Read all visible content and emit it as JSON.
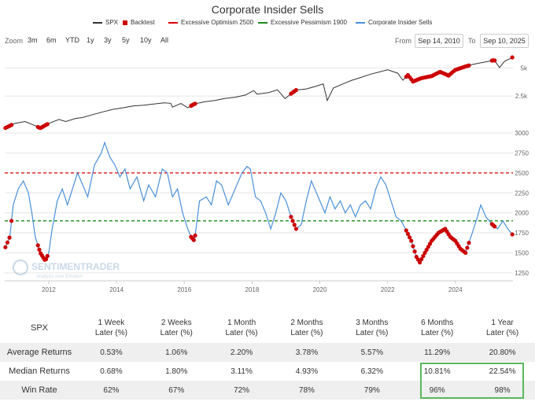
{
  "chart_data": {
    "type": "line",
    "title": "Corporate Insider Sells",
    "legend": [
      {
        "name": "SPX",
        "color": "#333333",
        "kind": "line"
      },
      {
        "name": "Backtest",
        "color": "#cc0000",
        "kind": "square"
      },
      {
        "name": "Excessive Optimism 2500",
        "color": "#e00000",
        "kind": "dash"
      },
      {
        "name": "Excessive Pessimism 1900",
        "color": "#1a8c1a",
        "kind": "dash"
      },
      {
        "name": "Corporate Insider Sells",
        "color": "#4a90d9",
        "kind": "line"
      }
    ],
    "x_ticks": [
      "2012",
      "2014",
      "2016",
      "2018",
      "2020",
      "2022",
      "2024"
    ],
    "x_range": [
      2010.7,
      2025.7
    ],
    "spx_axis": {
      "ticks": [
        "2.5k",
        "5k"
      ],
      "tick_values": [
        2500,
        5000
      ],
      "log": true,
      "range": [
        1150,
        6900
      ]
    },
    "insider_axis": {
      "ticks": [
        "1250",
        "1500",
        "1750",
        "2000",
        "2250",
        "2500",
        "2750",
        "3000"
      ],
      "tick_values": [
        1250,
        1500,
        1750,
        2000,
        2250,
        2500,
        2750,
        3000
      ],
      "range": [
        1150,
        3050
      ]
    },
    "thresholds": {
      "optimism": 2500,
      "pessimism": 1900
    },
    "spx_series": [
      [
        2010.7,
        1125
      ],
      [
        2011.0,
        1270
      ],
      [
        2011.3,
        1330
      ],
      [
        2011.6,
        1200
      ],
      [
        2011.75,
        1130
      ],
      [
        2012.0,
        1270
      ],
      [
        2012.3,
        1400
      ],
      [
        2012.5,
        1330
      ],
      [
        2012.8,
        1440
      ],
      [
        2013.0,
        1470
      ],
      [
        2013.3,
        1580
      ],
      [
        2013.6,
        1690
      ],
      [
        2013.9,
        1800
      ],
      [
        2014.2,
        1870
      ],
      [
        2014.5,
        1960
      ],
      [
        2014.8,
        1990
      ],
      [
        2015.1,
        2050
      ],
      [
        2015.4,
        2110
      ],
      [
        2015.6,
        2090
      ],
      [
        2015.65,
        1900
      ],
      [
        2015.9,
        2080
      ],
      [
        2016.1,
        1870
      ],
      [
        2016.3,
        2060
      ],
      [
        2016.6,
        2170
      ],
      [
        2016.9,
        2240
      ],
      [
        2017.2,
        2360
      ],
      [
        2017.5,
        2430
      ],
      [
        2017.8,
        2560
      ],
      [
        2018.05,
        2860
      ],
      [
        2018.15,
        2620
      ],
      [
        2018.5,
        2730
      ],
      [
        2018.75,
        2920
      ],
      [
        2018.97,
        2350
      ],
      [
        2019.3,
        2900
      ],
      [
        2019.6,
        2980
      ],
      [
        2019.9,
        3200
      ],
      [
        2020.1,
        3380
      ],
      [
        2020.22,
        2240
      ],
      [
        2020.4,
        3050
      ],
      [
        2020.7,
        3400
      ],
      [
        2020.95,
        3700
      ],
      [
        2021.2,
        3950
      ],
      [
        2021.5,
        4300
      ],
      [
        2021.8,
        4580
      ],
      [
        2022.0,
        4790
      ],
      [
        2022.3,
        4400
      ],
      [
        2022.45,
        3700
      ],
      [
        2022.6,
        4200
      ],
      [
        2022.75,
        3580
      ],
      [
        2023.0,
        3900
      ],
      [
        2023.3,
        4100
      ],
      [
        2023.55,
        4550
      ],
      [
        2023.8,
        4150
      ],
      [
        2024.0,
        4780
      ],
      [
        2024.3,
        5200
      ],
      [
        2024.5,
        5460
      ],
      [
        2024.7,
        5650
      ],
      [
        2024.95,
        5880
      ],
      [
        2025.15,
        6100
      ],
      [
        2025.3,
        5060
      ],
      [
        2025.45,
        5900
      ],
      [
        2025.7,
        6560
      ]
    ],
    "insider_series": [
      [
        2010.7,
        1550
      ],
      [
        2010.85,
        1700
      ],
      [
        2010.95,
        2100
      ],
      [
        2011.1,
        2300
      ],
      [
        2011.25,
        2400
      ],
      [
        2011.4,
        2250
      ],
      [
        2011.5,
        2000
      ],
      [
        2011.6,
        1700
      ],
      [
        2011.75,
        1500
      ],
      [
        2011.9,
        1400
      ],
      [
        2012.0,
        1500
      ],
      [
        2012.1,
        1800
      ],
      [
        2012.25,
        2150
      ],
      [
        2012.4,
        2300
      ],
      [
        2012.55,
        2100
      ],
      [
        2012.7,
        2300
      ],
      [
        2012.85,
        2500
      ],
      [
        2013.0,
        2350
      ],
      [
        2013.15,
        2200
      ],
      [
        2013.35,
        2600
      ],
      [
        2013.55,
        2750
      ],
      [
        2013.65,
        2880
      ],
      [
        2013.8,
        2700
      ],
      [
        2013.95,
        2600
      ],
      [
        2014.1,
        2450
      ],
      [
        2014.25,
        2550
      ],
      [
        2014.4,
        2300
      ],
      [
        2014.6,
        2450
      ],
      [
        2014.8,
        2150
      ],
      [
        2014.95,
        2350
      ],
      [
        2015.15,
        2200
      ],
      [
        2015.35,
        2550
      ],
      [
        2015.5,
        2500
      ],
      [
        2015.65,
        2200
      ],
      [
        2015.8,
        2300
      ],
      [
        2015.95,
        2000
      ],
      [
        2016.1,
        1800
      ],
      [
        2016.2,
        1700
      ],
      [
        2016.3,
        1650
      ],
      [
        2016.45,
        2150
      ],
      [
        2016.65,
        2200
      ],
      [
        2016.8,
        2100
      ],
      [
        2016.95,
        2400
      ],
      [
        2017.1,
        2350
      ],
      [
        2017.3,
        2100
      ],
      [
        2017.5,
        2300
      ],
      [
        2017.7,
        2500
      ],
      [
        2017.85,
        2580
      ],
      [
        2017.95,
        2550
      ],
      [
        2018.1,
        2200
      ],
      [
        2018.25,
        2150
      ],
      [
        2018.4,
        2000
      ],
      [
        2018.55,
        1800
      ],
      [
        2018.7,
        2000
      ],
      [
        2018.85,
        2250
      ],
      [
        2019.0,
        2150
      ],
      [
        2019.15,
        1950
      ],
      [
        2019.3,
        1800
      ],
      [
        2019.45,
        1850
      ],
      [
        2019.6,
        2150
      ],
      [
        2019.75,
        2400
      ],
      [
        2019.9,
        2250
      ],
      [
        2020.05,
        2100
      ],
      [
        2020.15,
        2000
      ],
      [
        2020.3,
        2200
      ],
      [
        2020.45,
        2050
      ],
      [
        2020.6,
        2150
      ],
      [
        2020.75,
        2000
      ],
      [
        2020.9,
        2100
      ],
      [
        2021.05,
        1950
      ],
      [
        2021.2,
        2100
      ],
      [
        2021.35,
        2150
      ],
      [
        2021.5,
        2050
      ],
      [
        2021.65,
        2300
      ],
      [
        2021.8,
        2450
      ],
      [
        2021.95,
        2350
      ],
      [
        2022.1,
        2150
      ],
      [
        2022.25,
        1950
      ],
      [
        2022.4,
        1900
      ],
      [
        2022.55,
        1780
      ],
      [
        2022.7,
        1650
      ],
      [
        2022.85,
        1450
      ],
      [
        2022.95,
        1380
      ],
      [
        2023.1,
        1500
      ],
      [
        2023.3,
        1650
      ],
      [
        2023.5,
        1750
      ],
      [
        2023.7,
        1800
      ],
      [
        2023.85,
        1700
      ],
      [
        2024.0,
        1650
      ],
      [
        2024.15,
        1550
      ],
      [
        2024.3,
        1500
      ],
      [
        2024.5,
        1750
      ],
      [
        2024.65,
        1950
      ],
      [
        2024.75,
        2100
      ],
      [
        2024.9,
        1950
      ],
      [
        2025.1,
        1850
      ],
      [
        2025.25,
        1800
      ],
      [
        2025.4,
        1900
      ],
      [
        2025.55,
        1800
      ],
      [
        2025.7,
        1720
      ]
    ],
    "backtest_x": [
      2010.72,
      2010.78,
      2010.84,
      2010.9,
      2011.68,
      2011.72,
      2011.76,
      2011.8,
      2011.84,
      2011.88,
      2011.92,
      2011.96,
      2016.2,
      2016.24,
      2016.28,
      2016.32,
      2019.15,
      2019.2,
      2019.25,
      2019.3,
      2022.55,
      2022.6,
      2022.65,
      2022.7,
      2022.75,
      2022.8,
      2022.85,
      2022.9,
      2022.95,
      2023.0,
      2023.05,
      2023.1,
      2023.15,
      2023.2,
      2023.25,
      2023.3,
      2023.35,
      2023.4,
      2023.45,
      2023.5,
      2023.55,
      2023.6,
      2023.65,
      2023.7,
      2023.75,
      2023.8,
      2023.85,
      2023.9,
      2023.95,
      2024.0,
      2024.05,
      2024.1,
      2024.15,
      2024.2,
      2024.25,
      2024.3,
      2024.35,
      2024.4,
      2025.08,
      2025.12,
      2025.16,
      2025.68
    ]
  },
  "controls": {
    "zoom_label": "Zoom",
    "zoom_buttons": [
      "3m",
      "6m",
      "YTD",
      "1y",
      "3y",
      "5y",
      "10y",
      "All"
    ],
    "from_label": "From",
    "from_value": "Sep 14, 2010",
    "to_label": "To",
    "to_value": "Sep 10, 2025"
  },
  "watermark": {
    "name": "SENTIMENTRADER",
    "tagline": "Analysis over Emotion"
  },
  "table": {
    "corner": "SPX",
    "headers": [
      [
        "1 Week",
        "Later (%)"
      ],
      [
        "2 Weeks",
        "Later (%)"
      ],
      [
        "1 Month",
        "Later (%)"
      ],
      [
        "2 Months",
        "Later (%)"
      ],
      [
        "3 Months",
        "Later (%)"
      ],
      [
        "6 Months",
        "Later (%)"
      ],
      [
        "1 Year",
        "Later (%)"
      ]
    ],
    "rows": [
      {
        "label": "Average Returns",
        "values": [
          "0.53%",
          "1.06%",
          "2.20%",
          "3.78%",
          "5.57%",
          "11.29%",
          "20.80%"
        ]
      },
      {
        "label": "Median Returns",
        "values": [
          "0.68%",
          "1.80%",
          "3.11%",
          "4.93%",
          "6.32%",
          "10.81%",
          "22.54%"
        ]
      },
      {
        "label": "Win Rate",
        "values": [
          "62%",
          "67%",
          "72%",
          "78%",
          "79%",
          "96%",
          "98%"
        ]
      }
    ]
  }
}
